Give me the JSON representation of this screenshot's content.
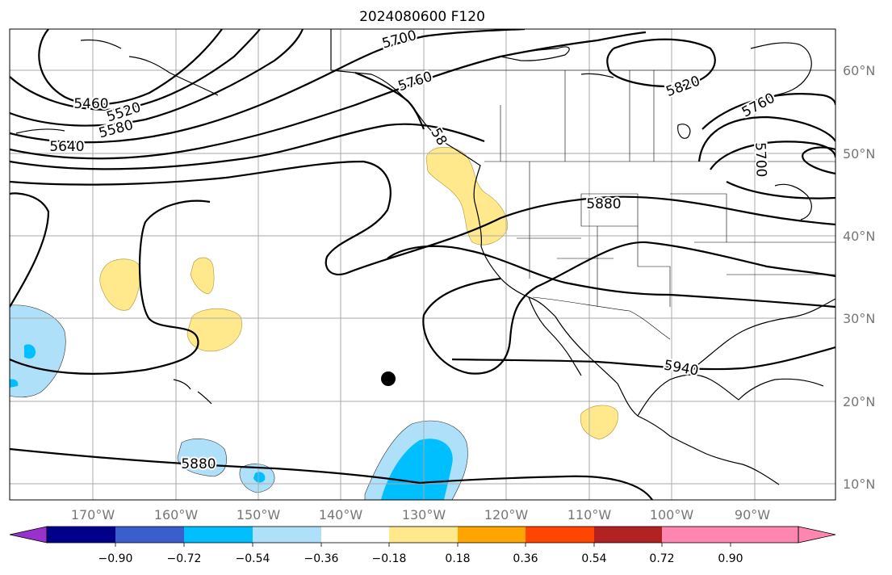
{
  "title": "2024080600 F120",
  "lon_labels": [
    "170°W",
    "160°W",
    "150°W",
    "140°W",
    "130°W",
    "120°W",
    "110°W",
    "100°W",
    "90°W"
  ],
  "lat_labels": [
    "60°N",
    "50°N",
    "40°N",
    "30°N",
    "20°N",
    "10°N"
  ],
  "contour_labels": [
    "5460",
    "5520",
    "5580",
    "5640",
    "5700",
    "5760",
    "5820",
    "5760",
    "5700",
    "5880",
    "5940",
    "5880",
    "58"
  ],
  "colorbar": {
    "ticks": [
      "−0.90",
      "−0.72",
      "−0.54",
      "−0.36",
      "−0.18",
      "0.18",
      "0.36",
      "0.54",
      "0.72",
      "0.90"
    ],
    "colors": [
      "#9932cc",
      "#00008b",
      "#3a5fcd",
      "#00bfff",
      "#afe0fa",
      "#ffffff",
      "#ffe98c",
      "#ffa500",
      "#ff4500",
      "#b22222",
      "#ff86b0"
    ]
  },
  "colors": {
    "anomaly_pos": "#ffe98c",
    "anomaly_neg_light": "#afe0fa",
    "anomaly_neg": "#00bfff"
  },
  "marker": "storm-center-dot"
}
